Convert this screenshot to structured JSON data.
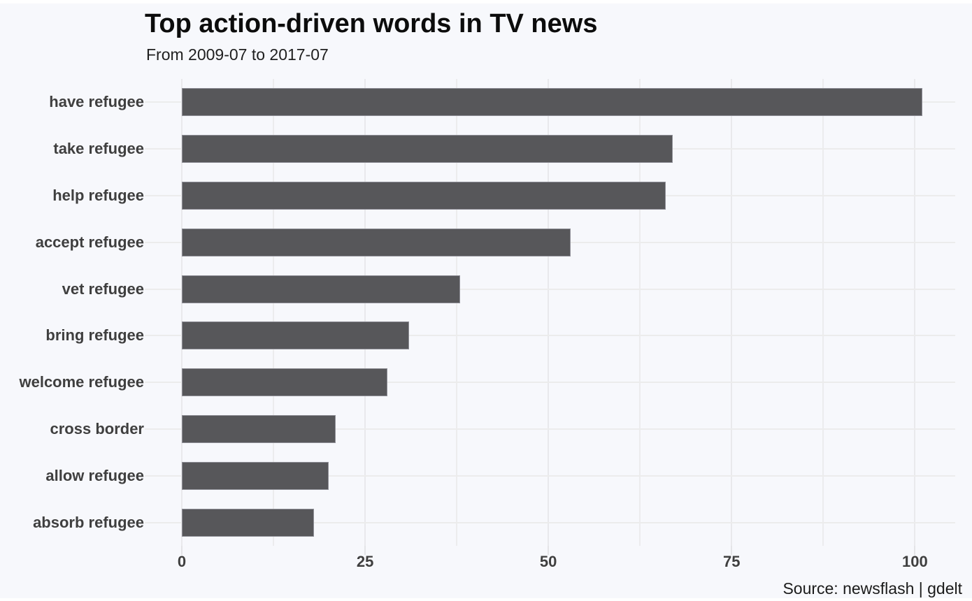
{
  "title": "Top action-driven words in TV news",
  "subtitle": "From 2009-07 to 2017-07",
  "source": "Source: newsflash | gdelt",
  "chart_data": {
    "type": "bar",
    "orientation": "horizontal",
    "title": "Top action-driven words in TV news",
    "subtitle": "From 2009-07 to 2017-07",
    "xlabel": "",
    "ylabel": "",
    "categories": [
      "have refugee",
      "take refugee",
      "help refugee",
      "accept refugee",
      "vet refugee",
      "bring refugee",
      "welcome refugee",
      "cross border",
      "allow refugee",
      "absorb refugee"
    ],
    "values": [
      101,
      67,
      66,
      53,
      38,
      31,
      28,
      21,
      20,
      18
    ],
    "xlim": [
      0,
      105.5
    ],
    "x_ticks": [
      0,
      25,
      50,
      75,
      100
    ],
    "x_minor_ticks": [
      12.5,
      37.5,
      62.5,
      87.5
    ],
    "grid": "on",
    "legend": "none",
    "colors": {
      "bar": "#57575a",
      "background": "#f7f8fc",
      "grid_major": "#e9e9ec",
      "grid_minor": "#ececee",
      "axis_text": "#3f3f3f",
      "title_text": "#0c0c0c"
    }
  }
}
